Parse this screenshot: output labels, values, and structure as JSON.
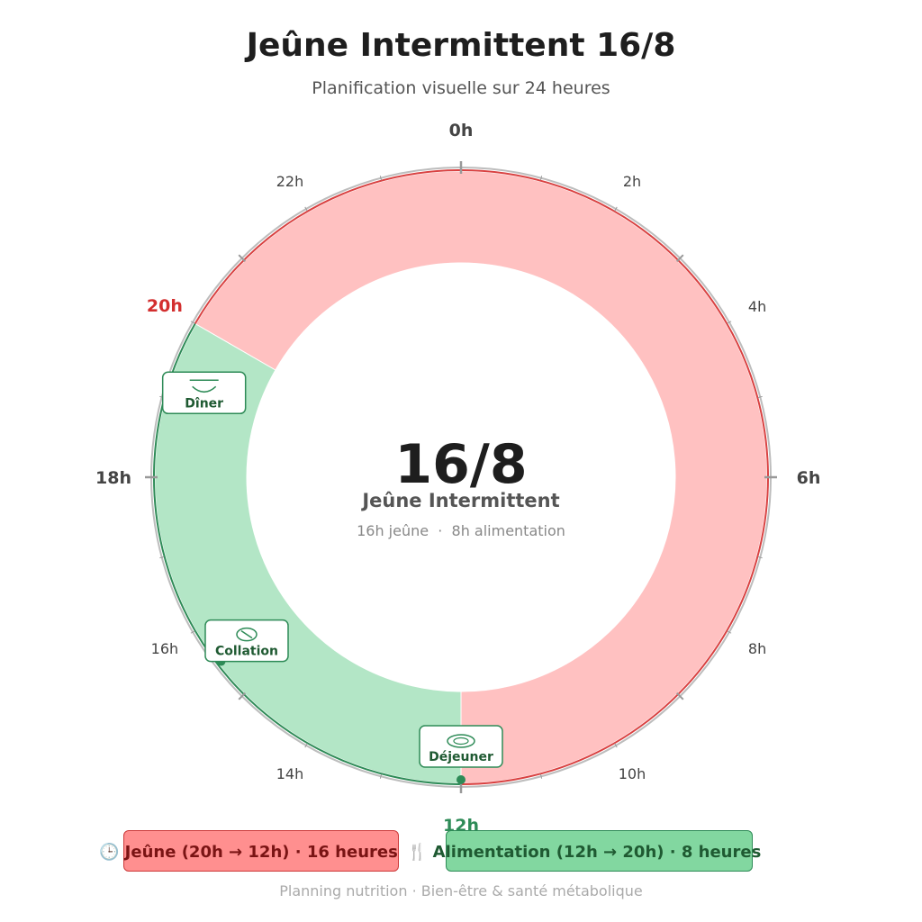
{
  "header": {
    "title": "Jeûne Intermittent 16/8",
    "subtitle": "Planification visuelle sur 24 heures"
  },
  "clock": {
    "hour_labels": {
      "h0": "0h",
      "h2": "2h",
      "h4": "4h",
      "h6": "6h",
      "h8": "8h",
      "h10": "10h",
      "h12": "12h",
      "h14": "14h",
      "h16": "16h",
      "h18": "18h",
      "h20": "20h",
      "h22": "22h"
    },
    "fasting": {
      "start_hour": 20,
      "end_hour": 12,
      "color": "#ffc1c1",
      "edge_color": "#d94141",
      "label_color": "#d32f2f"
    },
    "eating": {
      "start_hour": 12,
      "end_hour": 20,
      "color": "#b3e6c6",
      "edge_color": "#2e8b57",
      "label_color": "#2e8b57"
    }
  },
  "center": {
    "big": "16/8",
    "label": "Jeûne Intermittent",
    "detail": "16h jeûne  ·  8h alimentation"
  },
  "meals": [
    {
      "label": "Déjeuner",
      "hour": 12,
      "icon": "plate-icon"
    },
    {
      "label": "Collation",
      "hour": 15.5,
      "icon": "snack-icon"
    },
    {
      "label": "Dîner",
      "hour": 19.2,
      "icon": "bowl-icon"
    }
  ],
  "legend": {
    "fasting": "🕒 Jeûne  (20h → 12h)  ·  16 heures",
    "eating": "🍴 Alimentation  (12h → 20h)  ·  8 heures"
  },
  "footer": "Planning nutrition  ·  Bien-être & santé métabolique"
}
